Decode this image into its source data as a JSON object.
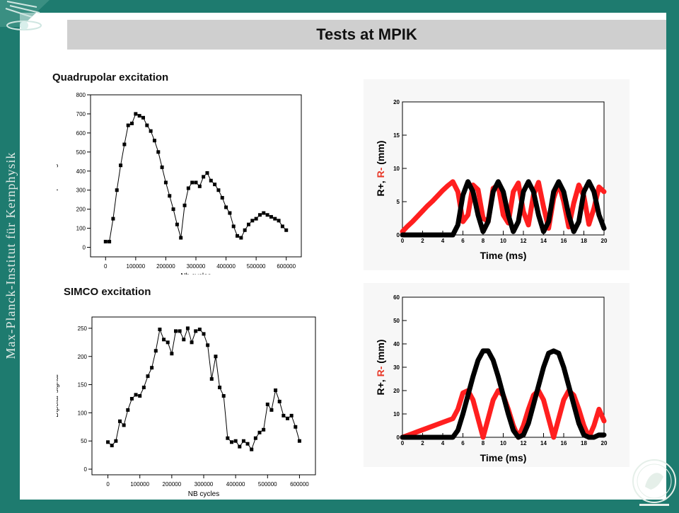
{
  "title": "Tests at MPIK",
  "sidebar_text": "Max-Planck-Institut für Kernphysik",
  "labels": {
    "quad": "Quadrupolar excitation",
    "simco": "SIMCO excitation"
  },
  "icons": {
    "top_left": "mpik-emblem-icon",
    "bottom_right": "mpg-logo-icon"
  },
  "colors": {
    "background": "#1e7b6f",
    "titlebar": "#cfcfcf",
    "red": "#ff1f1f",
    "black": "#000000"
  },
  "chart_data": [
    {
      "type": "line",
      "title": "",
      "xlabel": "Nb cycles",
      "ylabel": "Dipolar signal",
      "xlim": [
        -50000,
        650000
      ],
      "ylim": [
        -50,
        800
      ],
      "xticks": [
        0,
        100000,
        200000,
        300000,
        400000,
        500000,
        600000
      ],
      "yticks": [
        0,
        100,
        200,
        300,
        400,
        500,
        600,
        700,
        800
      ],
      "series": [
        {
          "name": "",
          "x": [
            0,
            12500,
            25000,
            37500,
            50000,
            62500,
            75000,
            87500,
            100000,
            112500,
            125000,
            137500,
            150000,
            162500,
            175000,
            187500,
            200000,
            212500,
            225000,
            237500,
            250000,
            262500,
            275000,
            287500,
            300000,
            312500,
            325000,
            337500,
            350000,
            362500,
            375000,
            387500,
            400000,
            412500,
            425000,
            437500,
            450000,
            462500,
            475000,
            487500,
            500000,
            512500,
            525000,
            537500,
            550000,
            562500,
            575000,
            587500,
            600000
          ],
          "values": [
            30,
            30,
            150,
            300,
            430,
            540,
            640,
            650,
            700,
            690,
            680,
            640,
            610,
            560,
            500,
            420,
            340,
            270,
            200,
            120,
            50,
            220,
            310,
            340,
            340,
            320,
            370,
            390,
            350,
            330,
            300,
            260,
            210,
            180,
            110,
            60,
            50,
            90,
            120,
            140,
            150,
            170,
            180,
            170,
            160,
            150,
            140,
            110,
            90
          ]
        }
      ]
    },
    {
      "type": "line",
      "title": "",
      "xlabel": "NB cycles",
      "ylabel": "Dipolar signal",
      "xlim": [
        -50000,
        650000
      ],
      "ylim": [
        -10,
        270
      ],
      "xticks": [
        0,
        100000,
        200000,
        300000,
        400000,
        500000,
        600000
      ],
      "yticks": [
        0,
        50,
        100,
        150,
        200,
        250
      ],
      "series": [
        {
          "name": "",
          "x": [
            0,
            12500,
            25000,
            37500,
            50000,
            62500,
            75000,
            87500,
            100000,
            112500,
            125000,
            137500,
            150000,
            162500,
            175000,
            187500,
            200000,
            212500,
            225000,
            237500,
            250000,
            262500,
            275000,
            287500,
            300000,
            312500,
            325000,
            337500,
            350000,
            362500,
            375000,
            387500,
            400000,
            412500,
            425000,
            437500,
            450000,
            462500,
            475000,
            487500,
            500000,
            512500,
            525000,
            537500,
            550000,
            562500,
            575000,
            587500,
            600000
          ],
          "values": [
            48,
            42,
            50,
            85,
            78,
            105,
            125,
            132,
            130,
            145,
            165,
            180,
            210,
            248,
            230,
            225,
            205,
            245,
            245,
            230,
            250,
            225,
            245,
            248,
            240,
            220,
            160,
            200,
            145,
            130,
            55,
            48,
            50,
            40,
            50,
            45,
            35,
            55,
            65,
            70,
            115,
            105,
            140,
            120,
            95,
            90,
            95,
            75,
            50
          ]
        }
      ]
    },
    {
      "type": "scatter",
      "title": "",
      "xlabel": "Time (ms)",
      "ylabel": "R+, R- (mm)",
      "xlim": [
        0,
        20
      ],
      "ylim": [
        0,
        20
      ],
      "xticks": [
        0,
        2,
        4,
        6,
        8,
        10,
        12,
        14,
        16,
        18,
        20
      ],
      "yticks": [
        0,
        5,
        10,
        15,
        20
      ],
      "series": [
        {
          "name": "R-",
          "x": [
            0,
            0.5,
            1,
            1.5,
            2,
            2.5,
            3,
            3.5,
            4,
            4.5,
            5,
            5.5,
            6,
            6.5,
            7,
            7.5,
            8,
            8.5,
            9,
            9.5,
            10,
            10.5,
            11,
            11.5,
            12,
            12.5,
            13,
            13.5,
            14,
            14.5,
            15,
            15.5,
            16,
            16.5,
            17,
            17.5,
            18,
            18.5,
            19,
            19.5,
            20
          ],
          "values": [
            0.5,
            1.3,
            2.0,
            2.8,
            3.6,
            4.4,
            5.1,
            5.9,
            6.7,
            7.4,
            8.0,
            6.5,
            2.0,
            3.0,
            7.5,
            6.8,
            2.5,
            2.0,
            7.0,
            7.5,
            3.0,
            1.8,
            6.5,
            7.8,
            3.5,
            1.5,
            6.0,
            7.9,
            4.2,
            1.0,
            5.5,
            7.8,
            5.0,
            1.2,
            4.8,
            7.5,
            5.8,
            1.6,
            4.0,
            7.2,
            6.5
          ]
        },
        {
          "name": "R+",
          "x": [
            0,
            0.5,
            1,
            1.5,
            2,
            2.5,
            3,
            3.5,
            4,
            4.5,
            5,
            5.5,
            6,
            6.5,
            7,
            7.5,
            8,
            8.5,
            9,
            9.5,
            10,
            10.5,
            11,
            11.5,
            12,
            12.5,
            13,
            13.5,
            14,
            14.5,
            15,
            15.5,
            16,
            16.5,
            17,
            17.5,
            18,
            18.5,
            19,
            19.5,
            20
          ],
          "values": [
            0,
            0,
            0,
            0,
            0,
            0,
            0,
            0,
            0,
            0,
            0,
            1.5,
            6,
            8,
            6.5,
            3,
            0.5,
            2,
            6.5,
            8,
            6.5,
            3,
            0.5,
            2,
            6.5,
            8,
            6.5,
            3,
            0.5,
            2,
            6.5,
            8,
            6.5,
            3,
            0.5,
            2,
            6.5,
            8,
            6.5,
            3,
            1
          ]
        }
      ]
    },
    {
      "type": "scatter",
      "title": "",
      "xlabel": "Time (ms)",
      "ylabel": "R+, R- (mm)",
      "xlim": [
        0,
        20
      ],
      "ylim": [
        0,
        60
      ],
      "xticks": [
        0,
        2,
        4,
        6,
        8,
        10,
        12,
        14,
        16,
        18,
        20
      ],
      "yticks": [
        0,
        10,
        20,
        30,
        40,
        50,
        60
      ],
      "series": [
        {
          "name": "R-",
          "x": [
            0,
            0.5,
            1,
            1.5,
            2,
            2.5,
            3,
            3.5,
            4,
            4.5,
            5,
            5.5,
            6,
            6.5,
            7,
            7.5,
            8,
            8.5,
            9,
            9.5,
            10,
            10.5,
            11,
            11.5,
            12,
            12.5,
            13,
            13.5,
            14,
            14.5,
            15,
            15.5,
            16,
            16.5,
            17,
            17.5,
            18,
            18.5,
            19,
            19.5,
            20
          ],
          "values": [
            0,
            0.8,
            1.6,
            2.4,
            3.2,
            4.0,
            4.8,
            5.6,
            6.4,
            7.2,
            8.0,
            12.0,
            19.0,
            20.0,
            16.0,
            8.0,
            0.0,
            8.0,
            16.0,
            20.0,
            18.0,
            12.0,
            5.0,
            0.0,
            5.0,
            12.0,
            18.0,
            20.0,
            16.0,
            8.0,
            0.0,
            8.0,
            16.0,
            20.0,
            18.0,
            12.0,
            5.0,
            0.0,
            5.0,
            12.0,
            7.0
          ]
        },
        {
          "name": "R+",
          "x": [
            0,
            0.5,
            1,
            1.5,
            2,
            2.5,
            3,
            3.5,
            4,
            4.5,
            5,
            5.5,
            6,
            6.5,
            7,
            7.5,
            8,
            8.5,
            9,
            9.5,
            10,
            10.5,
            11,
            11.5,
            12,
            12.5,
            13,
            13.5,
            14,
            14.5,
            15,
            15.5,
            16,
            16.5,
            17,
            17.5,
            18,
            18.5,
            19,
            19.5,
            20
          ],
          "values": [
            0,
            0,
            0,
            0,
            0,
            0,
            0,
            0,
            0,
            0,
            0,
            3,
            10,
            18,
            26,
            33,
            37,
            37,
            33,
            26,
            18,
            10,
            3,
            0,
            1,
            6,
            14,
            22,
            30,
            36,
            37,
            36,
            30,
            22,
            14,
            6,
            1,
            0,
            0,
            1,
            1
          ]
        }
      ]
    }
  ]
}
